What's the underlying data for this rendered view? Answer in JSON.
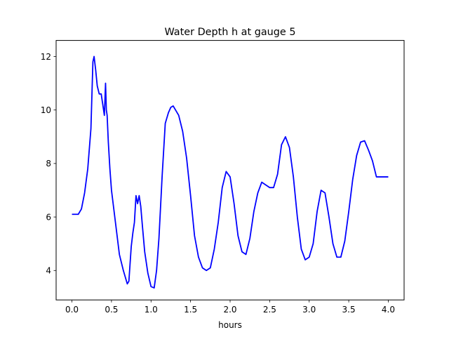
{
  "chart_data": {
    "type": "line",
    "title": "Water Depth h at gauge 5",
    "xlabel": "hours",
    "ylabel": "",
    "xlim": [
      -0.2,
      4.2
    ],
    "ylim": [
      2.9,
      12.6
    ],
    "x_ticks": [
      0.0,
      0.5,
      1.0,
      1.5,
      2.0,
      2.5,
      3.0,
      3.5,
      4.0
    ],
    "x_tick_labels": [
      "0.0",
      "0.5",
      "1.0",
      "1.5",
      "2.0",
      "2.5",
      "3.0",
      "3.5",
      "4.0"
    ],
    "y_ticks": [
      4,
      6,
      8,
      10,
      12
    ],
    "y_tick_labels": [
      "4",
      "6",
      "8",
      "10",
      "12"
    ],
    "grid": false,
    "legend": "none",
    "series": [
      {
        "color": "#0000ff",
        "x": [
          0.0,
          0.04,
          0.08,
          0.12,
          0.16,
          0.2,
          0.24,
          0.265,
          0.28,
          0.3,
          0.32,
          0.345,
          0.37,
          0.39,
          0.41,
          0.425,
          0.435,
          0.445,
          0.46,
          0.48,
          0.5,
          0.55,
          0.6,
          0.65,
          0.7,
          0.72,
          0.75,
          0.77,
          0.79,
          0.81,
          0.83,
          0.85,
          0.87,
          0.89,
          0.92,
          0.96,
          1.0,
          1.04,
          1.07,
          1.1,
          1.14,
          1.18,
          1.22,
          1.25,
          1.28,
          1.31,
          1.35,
          1.4,
          1.45,
          1.5,
          1.55,
          1.6,
          1.65,
          1.7,
          1.75,
          1.8,
          1.85,
          1.9,
          1.95,
          2.0,
          2.05,
          2.1,
          2.15,
          2.2,
          2.25,
          2.3,
          2.35,
          2.4,
          2.45,
          2.5,
          2.55,
          2.6,
          2.65,
          2.7,
          2.75,
          2.8,
          2.85,
          2.9,
          2.95,
          3.0,
          3.05,
          3.1,
          3.15,
          3.2,
          3.25,
          3.3,
          3.35,
          3.4,
          3.45,
          3.5,
          3.55,
          3.6,
          3.65,
          3.7,
          3.75,
          3.8,
          3.85,
          3.9,
          3.95,
          4.0
        ],
        "y": [
          6.1,
          6.1,
          6.1,
          6.3,
          6.9,
          7.8,
          9.3,
          11.8,
          12.0,
          11.5,
          10.9,
          10.6,
          10.6,
          10.2,
          9.8,
          11.0,
          10.0,
          9.8,
          8.8,
          7.8,
          7.0,
          5.8,
          4.6,
          4.0,
          3.5,
          3.6,
          4.9,
          5.4,
          5.8,
          6.8,
          6.5,
          6.8,
          6.4,
          5.7,
          4.7,
          3.9,
          3.4,
          3.35,
          4.0,
          5.2,
          7.5,
          9.5,
          9.9,
          10.1,
          10.15,
          10.0,
          9.8,
          9.2,
          8.2,
          6.8,
          5.3,
          4.5,
          4.1,
          4.0,
          4.1,
          4.8,
          5.8,
          7.1,
          7.7,
          7.5,
          6.5,
          5.3,
          4.7,
          4.6,
          5.2,
          6.2,
          6.9,
          7.3,
          7.2,
          7.1,
          7.1,
          7.6,
          8.7,
          9.0,
          8.6,
          7.5,
          6.0,
          4.8,
          4.4,
          4.5,
          5.0,
          6.2,
          7.0,
          6.9,
          6.0,
          5.0,
          4.5,
          4.5,
          5.1,
          6.2,
          7.4,
          8.3,
          8.8,
          8.85,
          8.5,
          8.1,
          7.5,
          7.5,
          7.5,
          7.5
        ]
      }
    ]
  }
}
